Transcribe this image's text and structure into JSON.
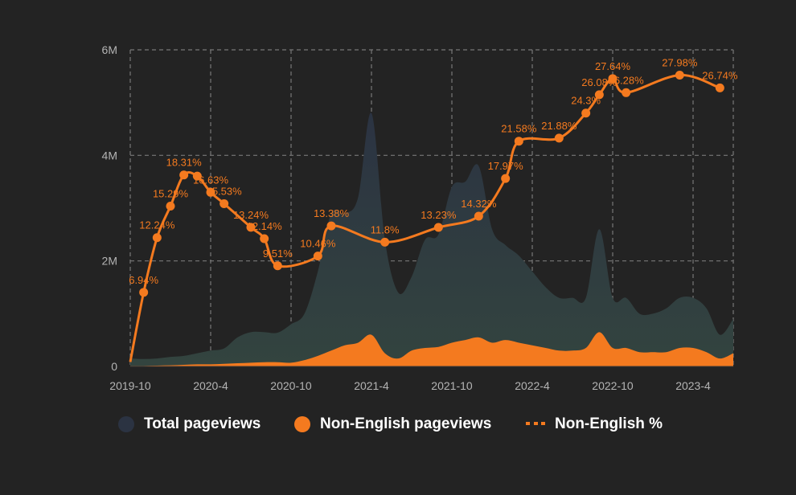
{
  "chart_data": {
    "type": "area",
    "colors": {
      "background": "#232323",
      "total": "#2b3342",
      "total_bottom": "#33443f",
      "non_english": "#f47a1f",
      "grid": "#777777",
      "text": "#b4b4b4"
    },
    "x_tick_labels": [
      "2019-10",
      "2020-4",
      "2020-10",
      "2021-4",
      "2021-10",
      "2022-4",
      "2022-10",
      "2023-4"
    ],
    "y_tick_labels": [
      "0",
      "2M",
      "4M",
      "6M"
    ],
    "y_tick_values": [
      0,
      2000000,
      4000000,
      6000000
    ],
    "ylim": [
      0,
      6000000
    ],
    "grid": true,
    "legend_position": "bottom",
    "legend": [
      {
        "key": "total",
        "label": "Total pageviews",
        "swatch": "dot"
      },
      {
        "key": "non_english",
        "label": "Non-English pageviews",
        "swatch": "dot"
      },
      {
        "key": "pct",
        "label": "Non-English %",
        "swatch": "dash"
      }
    ],
    "total_series": {
      "name": "Total pageviews",
      "x": [
        "2019-10",
        "2019-11",
        "2019-12",
        "2020-01",
        "2020-02",
        "2020-03",
        "2020-04",
        "2020-05",
        "2020-06",
        "2020-07",
        "2020-08",
        "2020-09",
        "2020-10",
        "2020-11",
        "2020-12",
        "2021-01",
        "2021-02",
        "2021-03",
        "2021-04",
        "2021-05",
        "2021-06",
        "2021-07",
        "2021-08",
        "2021-09",
        "2021-10",
        "2021-11",
        "2021-12",
        "2022-01",
        "2022-02",
        "2022-03",
        "2022-04",
        "2022-05",
        "2022-06",
        "2022-07",
        "2022-08",
        "2022-09",
        "2022-10",
        "2022-11",
        "2022-12",
        "2023-01",
        "2023-02",
        "2023-03",
        "2023-04",
        "2023-05",
        "2023-06",
        "2023-07"
      ],
      "values": [
        150000,
        140000,
        150000,
        180000,
        200000,
        250000,
        300000,
        340000,
        550000,
        650000,
        650000,
        640000,
        800000,
        1000000,
        1800000,
        2900000,
        2900000,
        3200000,
        4800000,
        2400000,
        1400000,
        1700000,
        2400000,
        2500000,
        3400000,
        3500000,
        3800000,
        2600000,
        2300000,
        2100000,
        1800000,
        1500000,
        1300000,
        1300000,
        1300000,
        2600000,
        1300000,
        1300000,
        1000000,
        1000000,
        1100000,
        1300000,
        1300000,
        1100000,
        600000,
        900000
      ]
    },
    "non_english_series": {
      "name": "Non-English pageviews",
      "x": [
        "2019-10",
        "2019-11",
        "2019-12",
        "2020-01",
        "2020-02",
        "2020-03",
        "2020-04",
        "2020-05",
        "2020-06",
        "2020-07",
        "2020-08",
        "2020-09",
        "2020-10",
        "2020-11",
        "2020-12",
        "2021-01",
        "2021-02",
        "2021-03",
        "2021-04",
        "2021-05",
        "2021-06",
        "2021-07",
        "2021-08",
        "2021-09",
        "2021-10",
        "2021-11",
        "2021-12",
        "2022-01",
        "2022-02",
        "2022-03",
        "2022-04",
        "2022-05",
        "2022-06",
        "2022-07",
        "2022-08",
        "2022-09",
        "2022-10",
        "2022-11",
        "2022-12",
        "2023-01",
        "2023-02",
        "2023-03",
        "2023-04",
        "2023-05",
        "2023-06",
        "2023-07"
      ],
      "values": [
        10000,
        10000,
        15000,
        20000,
        30000,
        40000,
        40000,
        50000,
        60000,
        70000,
        80000,
        80000,
        70000,
        120000,
        200000,
        300000,
        400000,
        450000,
        600000,
        250000,
        150000,
        300000,
        350000,
        370000,
        450000,
        500000,
        550000,
        450000,
        500000,
        450000,
        400000,
        350000,
        300000,
        300000,
        350000,
        650000,
        350000,
        350000,
        270000,
        270000,
        270000,
        350000,
        350000,
        270000,
        150000,
        250000
      ]
    },
    "pct_series": {
      "name": "Non-English %",
      "points": [
        {
          "x": "2019-10",
          "y": 0.2,
          "label": ""
        },
        {
          "x": "2019-11",
          "y": 6.94,
          "label": "6.94%"
        },
        {
          "x": "2019-12",
          "y": 12.24,
          "label": "12.24%"
        },
        {
          "x": "2020-01",
          "y": 15.29,
          "label": "15.29%"
        },
        {
          "x": "2020-02",
          "y": 18.31,
          "label": "18.31%"
        },
        {
          "x": "2020-03",
          "y": 18.2,
          "label": ""
        },
        {
          "x": "2020-04",
          "y": 16.63,
          "label": "16.63%"
        },
        {
          "x": "2020-05",
          "y": 15.53,
          "label": "15.53%"
        },
        {
          "x": "2020-07",
          "y": 13.24,
          "label": "13.24%"
        },
        {
          "x": "2020-08",
          "y": 12.14,
          "label": "12.14%"
        },
        {
          "x": "2020-09",
          "y": 9.51,
          "label": "9.51%"
        },
        {
          "x": "2020-12",
          "y": 10.46,
          "label": "10.46%"
        },
        {
          "x": "2021-01",
          "y": 13.38,
          "label": "13.38%"
        },
        {
          "x": "2021-05",
          "y": 11.8,
          "label": "11.8%"
        },
        {
          "x": "2021-09",
          "y": 13.23,
          "label": "13.23%"
        },
        {
          "x": "2021-12",
          "y": 14.32,
          "label": "14.32%"
        },
        {
          "x": "2022-02",
          "y": 17.97,
          "label": "17.97%"
        },
        {
          "x": "2022-03",
          "y": 21.58,
          "label": "21.58%"
        },
        {
          "x": "2022-06",
          "y": 21.88,
          "label": "21.88%"
        },
        {
          "x": "2022-08",
          "y": 24.3,
          "label": "24.3%"
        },
        {
          "x": "2022-09",
          "y": 26.08,
          "label": "26.08%"
        },
        {
          "x": "2022-10",
          "y": 27.64,
          "label": "27.64%"
        },
        {
          "x": "2022-11",
          "y": 26.28,
          "label": "26.28%"
        },
        {
          "x": "2023-03",
          "y": 27.98,
          "label": "27.98%"
        },
        {
          "x": "2023-06",
          "y": 26.74,
          "label": "26.74%"
        }
      ]
    }
  }
}
